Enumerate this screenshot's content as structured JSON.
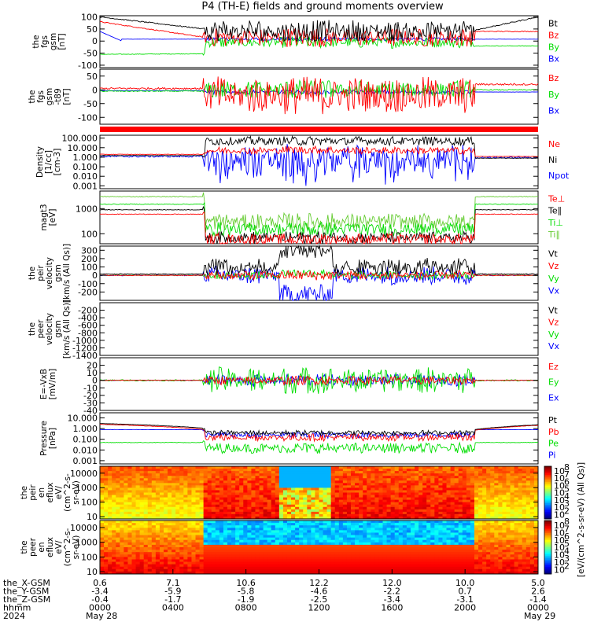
{
  "title": "P4 (TH-E) fields and ground moments overview",
  "colors": {
    "black": "#000000",
    "red": "#ff0000",
    "green": "#00dd00",
    "blue": "#0000ff",
    "olive": "#66cc33"
  },
  "chart_data": [
    {
      "panel": "fgs",
      "type": "line",
      "ylabel": [
        "the",
        "fgs",
        "gsm",
        "[nT]"
      ],
      "ylim": [
        -110,
        105
      ],
      "yticks": [
        "100",
        "50",
        "0",
        "-50",
        "-100"
      ],
      "legend": [
        "Bt",
        "Bz",
        "By",
        "Bx"
      ],
      "legend_colors": [
        "black",
        "red",
        "green",
        "blue"
      ]
    },
    {
      "panel": "fgs-t89",
      "type": "line",
      "ylabel": [
        "the",
        "fgs",
        "gsm",
        "-t89",
        "[nT]"
      ],
      "ylim": [
        -125,
        75
      ],
      "yticks": [
        "50",
        "0",
        "-50",
        "-100"
      ],
      "legend": [
        "Bz",
        "By",
        "Bx"
      ],
      "legend_colors": [
        "red",
        "green",
        "blue"
      ]
    },
    {
      "panel": "density",
      "type": "line",
      "ylabel": [
        "Density",
        "[1/cc]",
        "[cm-3]"
      ],
      "ylim": [
        0.0005,
        200
      ],
      "log": true,
      "yticks": [
        "100.000",
        "10.000",
        "1.000",
        "0.100",
        "0.010",
        "0.001"
      ],
      "legend": [
        "Ne",
        "Ni",
        "Npot"
      ],
      "legend_colors": [
        "red",
        "black",
        "blue"
      ]
    },
    {
      "panel": "temperature",
      "type": "line",
      "ylabel": [
        "magt3",
        "[eV]"
      ],
      "ylim": [
        40,
        5000
      ],
      "log": true,
      "yticks": [
        "1000",
        "100"
      ],
      "legend": [
        "Te⊥",
        "Te∥",
        "Ti⊥",
        "Ti∥"
      ],
      "legend_colors": [
        "red",
        "black",
        "green",
        "olive"
      ]
    },
    {
      "panel": "peir-velocity",
      "type": "line",
      "ylabel": [
        "the",
        "peir",
        "velocity",
        "gsm",
        "[km/s (All Qs)]"
      ],
      "ylim": [
        -300,
        350
      ],
      "yticks": [
        "300",
        "200",
        "100",
        "0",
        "-100",
        "-200"
      ],
      "legend": [
        "Vt",
        "Vz",
        "Vy",
        "Vx"
      ],
      "legend_colors": [
        "black",
        "red",
        "green",
        "blue"
      ]
    },
    {
      "panel": "peer-velocity",
      "type": "line",
      "ylabel": [
        "the",
        "peer",
        "velocity",
        "gsm",
        "[km/s (All Qs)]"
      ],
      "ylim": [
        -1400,
        0
      ],
      "yticks": [
        "-200",
        "-400",
        "-600",
        "-800",
        "-1000",
        "-1200",
        "-1400"
      ],
      "legend": [
        "Vt",
        "Vz",
        "Vy",
        "Vx"
      ],
      "legend_colors": [
        "black",
        "red",
        "green",
        "blue"
      ]
    },
    {
      "panel": "efield",
      "type": "line",
      "ylabel": [
        "E=-VxB",
        "[mV/m]"
      ],
      "ylim": [
        -40,
        30
      ],
      "yticks": [
        "20",
        "10",
        "0",
        "-10",
        "-20",
        "-30",
        "-40"
      ],
      "legend": [
        "Ez",
        "Ey",
        "Ex"
      ],
      "legend_colors": [
        "red",
        "green",
        "blue"
      ]
    },
    {
      "panel": "pressure",
      "type": "line",
      "ylabel": [
        "Pressure",
        "[nPa]"
      ],
      "ylim": [
        0.0005,
        30
      ],
      "log": true,
      "yticks": [
        "10.000",
        "1.000",
        "0.100",
        "0.010",
        "0.001"
      ],
      "legend": [
        "Pt",
        "Pb",
        "Pe",
        "Pi"
      ],
      "legend_colors": [
        "black",
        "red",
        "green",
        "blue"
      ]
    },
    {
      "panel": "peir-eflux",
      "type": "heatmap",
      "ylabel": [
        "the",
        "peir",
        "en",
        "eflux",
        "eV/",
        "(cm^2-s-",
        "sr-eV)"
      ],
      "ylim": [
        7,
        30000
      ],
      "log": true,
      "yticks": [
        "10000",
        "1000",
        "100",
        "10"
      ]
    },
    {
      "panel": "peer-eflux",
      "type": "heatmap",
      "ylabel": [
        "the",
        "peer",
        "en",
        "eflux",
        "eV/",
        "(cm^2-s-",
        "sr-eV)"
      ],
      "ylim": [
        7,
        30000
      ],
      "log": true,
      "yticks": [
        "10000",
        "1000",
        "100",
        "10"
      ]
    }
  ],
  "colorbar": {
    "label": "[eV/(cm^2-s-sr-eV) (All Qs)]",
    "ticks_top": [
      "10",
      "10",
      "10",
      "10",
      "10",
      "10",
      "10"
    ],
    "exps_top": [
      "8",
      "7",
      "6",
      "5",
      "4",
      "3",
      "2"
    ],
    "ticks_bottom": [
      "10",
      "10",
      "10",
      "10",
      "10",
      "10",
      "10"
    ],
    "exps_bottom": [
      "8",
      "7",
      "6",
      "5",
      "4",
      "3",
      "2"
    ]
  },
  "orbit": {
    "labels": [
      "the_X-GSM",
      "the_Y-GSM",
      "the_Z-GSM",
      "hhmm",
      "2024"
    ],
    "columns": [
      [
        "0.6",
        "-3.4",
        "-0.4",
        "0000",
        "May 28"
      ],
      [
        "7.1",
        "-5.9",
        "-1.7",
        "0400",
        ""
      ],
      [
        "10.6",
        "-5.8",
        "-1.9",
        "0800",
        ""
      ],
      [
        "12.2",
        "-4.6",
        "-2.5",
        "1200",
        ""
      ],
      [
        "12.0",
        "-2.2",
        "-3.4",
        "1600",
        ""
      ],
      [
        "10.0",
        "0.7",
        "-3.1",
        "2000",
        ""
      ],
      [
        "5.0",
        "2.6",
        "-1.4",
        "0000",
        "May 29"
      ]
    ]
  }
}
